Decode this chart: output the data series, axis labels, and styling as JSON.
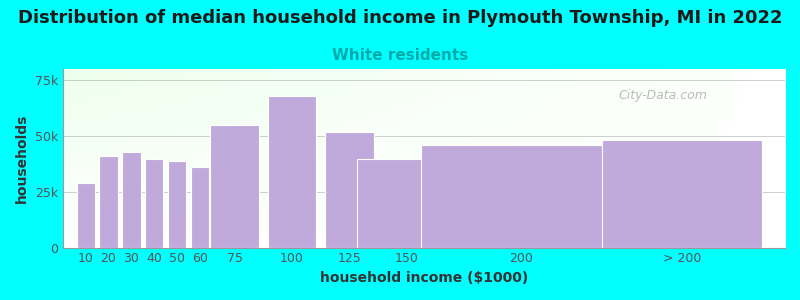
{
  "title": "Distribution of median household income in Plymouth Township, MI in 2022",
  "subtitle": "White residents",
  "xlabel": "household income ($1000)",
  "ylabel": "households",
  "background_color": "#00FFFF",
  "bar_color": "#C0AADB",
  "bar_edge_color": "white",
  "categories": [
    "10",
    "20",
    "30",
    "40",
    "50",
    "60",
    "75",
    "100",
    "125",
    "150",
    "200",
    "> 200"
  ],
  "values": [
    29000,
    41000,
    43000,
    39500,
    39000,
    36000,
    55000,
    68000,
    52000,
    39500,
    46000,
    48000
  ],
  "ylim": [
    0,
    80000
  ],
  "yticks": [
    0,
    25000,
    50000,
    75000
  ],
  "ytick_labels": [
    "0",
    "25k",
    "50k",
    "75k"
  ],
  "title_fontsize": 13,
  "subtitle_fontsize": 11,
  "subtitle_color": "#00AAAA",
  "axis_label_fontsize": 10,
  "tick_fontsize": 9,
  "tick_color": "#555555",
  "watermark_text": "City-Data.com",
  "x_positions": [
    10,
    20,
    30,
    40,
    50,
    60,
    75,
    100,
    125,
    150,
    200,
    270
  ],
  "bar_widths": [
    9,
    9,
    9,
    9,
    9,
    9,
    24,
    24,
    24,
    49,
    99,
    79
  ],
  "x_tick_positions": [
    10,
    20,
    30,
    40,
    50,
    60,
    75,
    100,
    125,
    150,
    200,
    270
  ],
  "x_tick_labels": [
    "10",
    "20",
    "30",
    "40",
    "50",
    "60",
    "75",
    "100",
    "125",
    "150",
    "200",
    "> 200"
  ],
  "xlim": [
    0,
    315
  ]
}
